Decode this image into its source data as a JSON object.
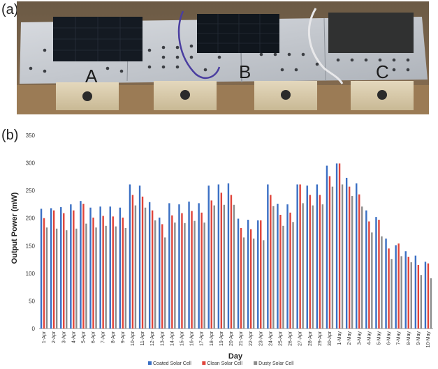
{
  "panel_labels": {
    "a": "(a)",
    "b": "(b)"
  },
  "photo": {
    "marker_a": "A",
    "marker_b": "B",
    "marker_c": "C"
  },
  "colors": {
    "coated": "#3a6fc4",
    "clean": "#e0443a",
    "dusty": "#8c8c8c"
  },
  "chart_data": {
    "type": "bar",
    "xlabel": "Day",
    "ylabel": "Output Power (mW)",
    "ylim": [
      0,
      350
    ],
    "yticks": [
      0,
      50,
      100,
      150,
      200,
      250,
      300,
      350
    ],
    "legend_position": "bottom",
    "categories": [
      "1-Apr",
      "2-Apr",
      "3-Apr",
      "4-Apr",
      "5-Apr",
      "6-Apr",
      "7-Apr",
      "8-Apr",
      "9-Apr",
      "10-Apr",
      "11-Apr",
      "12-Apr",
      "13-Apr",
      "14-Apr",
      "15-Apr",
      "16-Apr",
      "17-Apr",
      "18-Apr",
      "19-Apr",
      "20-Apr",
      "21-Apr",
      "22-Apr",
      "23-Apr",
      "24-Apr",
      "25-Apr",
      "26-Apr",
      "27-Apr",
      "28-Apr",
      "29-Apr",
      "30-Apr",
      "1-May",
      "2-May",
      "3-May",
      "4-May",
      "5-May",
      "6-May",
      "7-May",
      "8-May",
      "9-May",
      "10-May"
    ],
    "series": [
      {
        "name": "Coated Solar Cell",
        "values": [
          217,
          218,
          220,
          225,
          231,
          219,
          221,
          221,
          219,
          261,
          259,
          229,
          201,
          227,
          225,
          230,
          227,
          259,
          261,
          263,
          199,
          197,
          196,
          261,
          226,
          225,
          261,
          259,
          261,
          295,
          299,
          273,
          263,
          214,
          202,
          163,
          151,
          140,
          132,
          121
        ]
      },
      {
        "name": "Clean Solar Cell",
        "values": [
          200,
          214,
          209,
          214,
          226,
          201,
          204,
          203,
          201,
          242,
          239,
          214,
          189,
          205,
          209,
          213,
          210,
          232,
          246,
          242,
          182,
          180,
          196,
          242,
          206,
          210,
          261,
          242,
          242,
          276,
          299,
          257,
          243,
          194,
          197,
          145,
          154,
          130,
          115,
          118
        ]
      },
      {
        "name": "Dusty Solar Cell",
        "values": [
          183,
          181,
          178,
          181,
          190,
          183,
          186,
          185,
          182,
          223,
          219,
          196,
          165,
          192,
          191,
          195,
          192,
          223,
          224,
          224,
          165,
          163,
          160,
          222,
          186,
          193,
          227,
          223,
          225,
          257,
          261,
          240,
          221,
          174,
          167,
          126,
          131,
          120,
          97,
          91
        ]
      }
    ]
  }
}
